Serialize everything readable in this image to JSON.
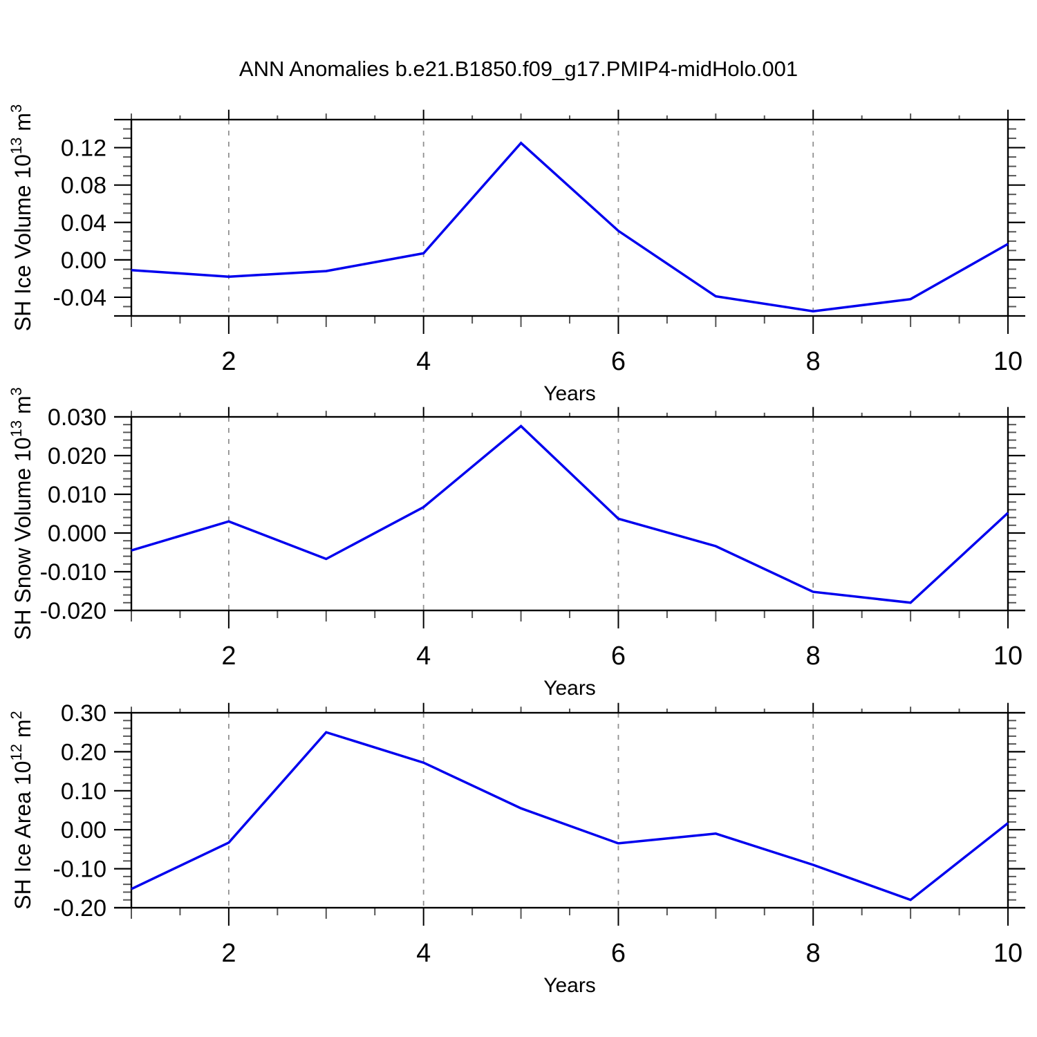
{
  "title": "ANN Anomalies b.e21.B1850.f09_g17.PMIP4-midHolo.001",
  "colors": {
    "line": "#0000EE",
    "frame": "#000000",
    "grid": "#909090",
    "minor_tick": "#555555",
    "major_tick": "#000000",
    "text": "#000000"
  },
  "x_axis": {
    "label": "Years",
    "range": [
      1,
      10
    ],
    "labeled_ticks": [
      2,
      4,
      6,
      8,
      10
    ],
    "minor_step": 0.5,
    "grid_years": [
      2,
      4,
      6,
      8
    ]
  },
  "chart_data": [
    {
      "type": "line",
      "name": "sh-ice-volume",
      "ylabel_text": "SH Ice Volume 10^13 m^3",
      "ylabel_parts": [
        {
          "text": "SH Ice Volume 10"
        },
        {
          "text": "13",
          "sup": true
        },
        {
          "text": " m"
        },
        {
          "text": "3",
          "sup": true
        }
      ],
      "xlabel": "Years",
      "x": [
        1,
        2,
        3,
        4,
        5,
        6,
        7,
        8,
        9,
        10
      ],
      "values": [
        -0.011,
        -0.018,
        -0.012,
        0.007,
        0.125,
        0.031,
        -0.039,
        -0.055,
        -0.042,
        0.017
      ],
      "ylim": [
        -0.06,
        0.15
      ],
      "yticks": [
        -0.04,
        0.0,
        0.04,
        0.08,
        0.12
      ],
      "ytick_decimals": 2,
      "yminor_step": 0.01
    },
    {
      "type": "line",
      "name": "sh-snow-volume",
      "ylabel_text": "SH Snow Volume 10^13 m^3",
      "ylabel_parts": [
        {
          "text": "SH Snow Volume 10"
        },
        {
          "text": "13",
          "sup": true
        },
        {
          "text": " m"
        },
        {
          "text": "3",
          "sup": true
        }
      ],
      "xlabel": "Years",
      "x": [
        1,
        2,
        3,
        4,
        5,
        6,
        7,
        8,
        9,
        10
      ],
      "values": [
        -0.0045,
        0.003,
        -0.0067,
        0.0067,
        0.0276,
        0.0037,
        -0.0034,
        -0.0152,
        -0.018,
        0.0052
      ],
      "ylim": [
        -0.02,
        0.03
      ],
      "yticks": [
        -0.02,
        -0.01,
        0.0,
        0.01,
        0.02,
        0.03
      ],
      "ytick_decimals": 3,
      "yminor_step": 0.002
    },
    {
      "type": "line",
      "name": "sh-ice-area",
      "ylabel_text": "SH Ice Area 10^12 m^2",
      "ylabel_parts": [
        {
          "text": "SH Ice Area 10"
        },
        {
          "text": "12",
          "sup": true
        },
        {
          "text": " m"
        },
        {
          "text": "2",
          "sup": true
        }
      ],
      "xlabel": "Years",
      "x": [
        1,
        2,
        3,
        4,
        5,
        6,
        7,
        8,
        9,
        10
      ],
      "values": [
        -0.152,
        -0.033,
        0.25,
        0.172,
        0.055,
        -0.035,
        -0.01,
        -0.09,
        -0.18,
        0.017
      ],
      "ylim": [
        -0.2,
        0.3
      ],
      "yticks": [
        -0.2,
        -0.1,
        0.0,
        0.1,
        0.2,
        0.3
      ],
      "ytick_decimals": 2,
      "yminor_step": 0.02
    }
  ]
}
